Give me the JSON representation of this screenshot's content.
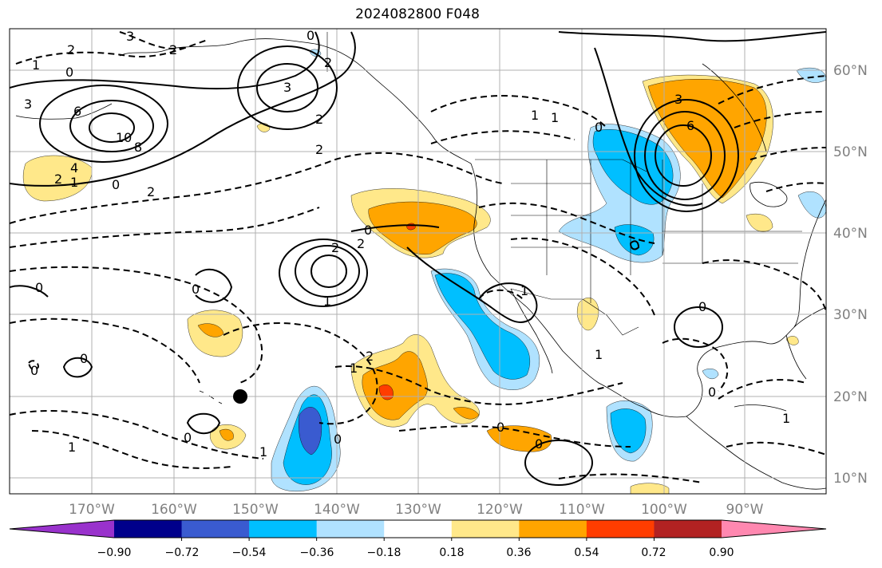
{
  "title": "2024082800 F048",
  "map": {
    "lon_ticks": [
      "170°W",
      "160°W",
      "150°W",
      "140°W",
      "130°W",
      "120°W",
      "110°W",
      "100°W",
      "90°W"
    ],
    "lat_ticks": [
      "60°N",
      "50°N",
      "40°N",
      "30°N",
      "20°N",
      "10°N"
    ],
    "grid_color": "#b0b0b0",
    "coastline_color": "#000000",
    "contour_labels": [
      "3",
      "2",
      "2",
      "1",
      "0",
      "0",
      "3",
      "2",
      "6",
      "10",
      "8",
      "3",
      "4",
      "2",
      "1",
      "0",
      "2",
      "2",
      "2",
      "1",
      "0",
      "2",
      "2",
      "0",
      "1",
      "3",
      "6",
      "0",
      "1",
      "2",
      "1",
      "0",
      "0",
      "0",
      "1",
      "1",
      "0",
      "0",
      "1",
      "0",
      "0",
      "0",
      "1",
      "0",
      "1"
    ],
    "marker": {
      "type": "dot",
      "color": "#000000"
    }
  },
  "colorbar": {
    "labels": [
      "−0.90",
      "−0.72",
      "−0.54",
      "−0.36",
      "−0.18",
      "0.18",
      "0.36",
      "0.54",
      "0.72",
      "0.90"
    ],
    "colors": [
      "#9932cc",
      "#00008b",
      "#3a5bd0",
      "#00bfff",
      "#b0e2ff",
      "#ffffff",
      "#ffe88a",
      "#ffa500",
      "#ff3d00",
      "#b22222",
      "#ff88b0"
    ]
  }
}
